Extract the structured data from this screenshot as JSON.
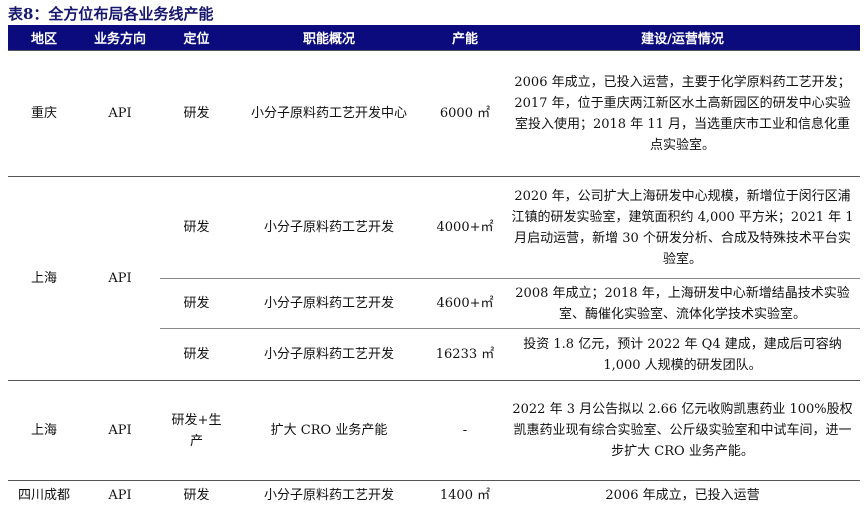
{
  "title": "表8：全方位布局各业务线产能",
  "headers": [
    "地区",
    "业务方向",
    "定位",
    "职能概况",
    "产能",
    "建设/运营情况"
  ],
  "rows": [
    {
      "region": "重庆",
      "direction": "API",
      "position": "研发",
      "function": "小分子原料药工艺开发中心",
      "capacity": "6000 ㎡",
      "status": "2006 年成立，已投入运营，主要于化学原料药工艺开发；2017 年，位于重庆两江新区水土高新园区的研发中心实验室投入使用；2018 年 11 月，当选重庆市工业和信息化重点实验室。"
    },
    {
      "region": "上海",
      "direction": "API",
      "sub": [
        {
          "position": "研发",
          "function": "小分子原料药工艺开发",
          "capacity": "4000+㎡",
          "status": "2020 年，公司扩大上海研发中心规模，新增位于闵行区浦江镇的研发实验室，建筑面积约 4,000 平方米；2021 年 1 月启动运营，新增 30 个研发分析、合成及特殊技术平台实验室。"
        },
        {
          "position": "研发",
          "function": "小分子原料药工艺开发",
          "capacity": "4600+㎡",
          "status": "2008 年成立；2018 年，上海研发中心新增结晶技术实验室、酶催化实验室、流体化学技术实验室。"
        },
        {
          "position": "研发",
          "function": "小分子原料药工艺开发",
          "capacity": "16233 ㎡",
          "status": "投资 1.8 亿元，预计 2022 年 Q4 建成，建成后可容纳 1,000 人规模的研发团队。"
        }
      ]
    },
    {
      "region": "上海",
      "direction": "API",
      "position": "研发+生产",
      "function": "扩大 CRO 业务产能",
      "capacity": "-",
      "status": "2022 年 3 月公告拟以 2.66 亿元收购凯惠药业 100%股权 凯惠药业现有综合实验室、公斤级实验室和中试车间，进一步扩大 CRO 业务产能。"
    },
    {
      "region": "四川成都",
      "direction": "API",
      "position": "研发",
      "function": "小分子原料药工艺开发",
      "capacity": "1400 ㎡",
      "status": "2006 年成立，已投入运营"
    }
  ]
}
